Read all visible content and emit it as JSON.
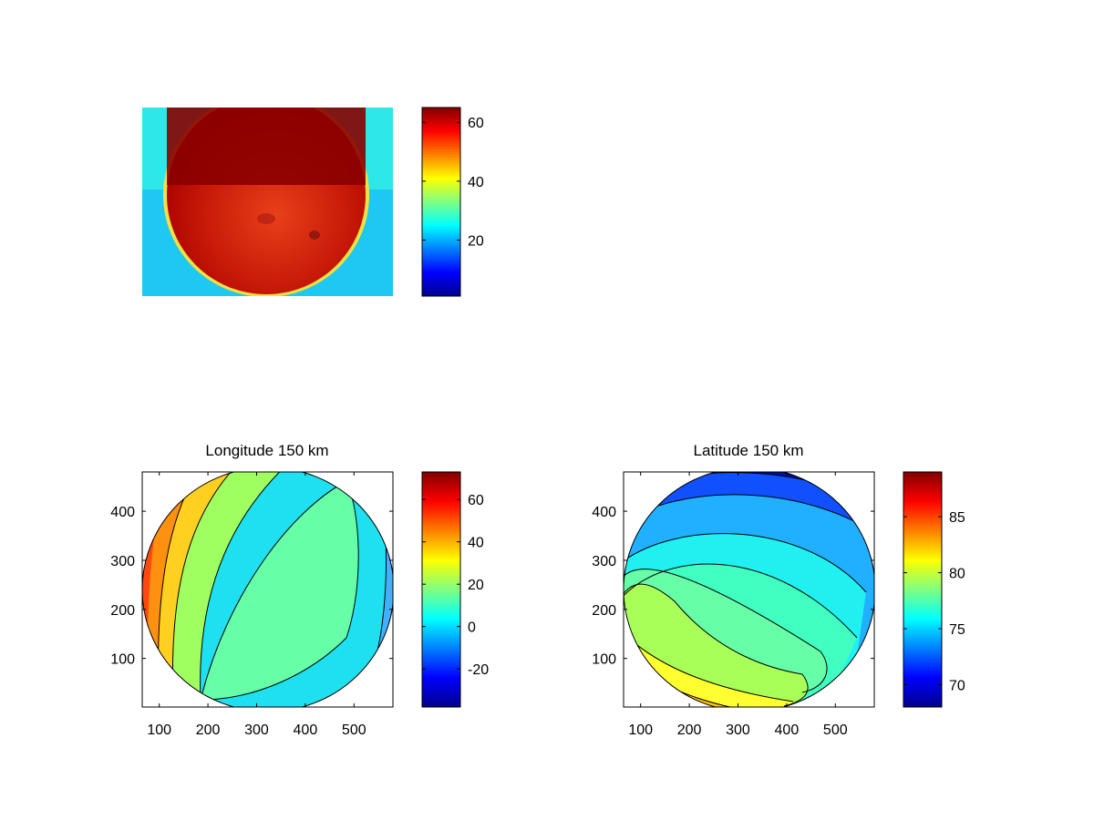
{
  "chart_data": [
    {
      "type": "heatmap",
      "title": "",
      "description_shape": "disk image",
      "colormap": "jet",
      "colorbar": {
        "range": [
          1,
          65
        ],
        "ticks": [
          20,
          40,
          60
        ],
        "tick_labels": [
          "20",
          "40",
          "60"
        ]
      },
      "axes_visible": false
    },
    {
      "type": "contour",
      "title": "Longitude 150 km",
      "colormap": "jet",
      "xlim": [
        65,
        580
      ],
      "ylim": [
        1,
        480
      ],
      "xticks": [
        100,
        200,
        300,
        400,
        500
      ],
      "xtick_labels": [
        "100",
        "200",
        "300",
        "400",
        "500"
      ],
      "yticks": [
        100,
        200,
        300,
        400
      ],
      "ytick_labels": [
        "100",
        "200",
        "300",
        "400"
      ],
      "colorbar": {
        "range": [
          -38,
          73
        ],
        "ticks": [
          -20,
          0,
          20,
          40,
          60
        ],
        "tick_labels": [
          "-20",
          "0",
          "20",
          "40",
          "60"
        ]
      },
      "contour_levels": [
        -30,
        -20,
        -10,
        0,
        10,
        20,
        30,
        40,
        50,
        60,
        70
      ]
    },
    {
      "type": "contour",
      "title": "Latitude 150 km",
      "colormap": "jet",
      "xlim": [
        65,
        580
      ],
      "ylim": [
        1,
        480
      ],
      "xticks": [
        100,
        200,
        300,
        400,
        500
      ],
      "xtick_labels": [
        "100",
        "200",
        "300",
        "400",
        "500"
      ],
      "yticks": [
        100,
        200,
        300,
        400
      ],
      "ytick_labels": [
        "100",
        "200",
        "300",
        "400"
      ],
      "colorbar": {
        "range": [
          68,
          89
        ],
        "ticks": [
          70,
          75,
          80,
          85
        ],
        "tick_labels": [
          "70",
          "75",
          "80",
          "85"
        ]
      },
      "contour_levels": [
        70,
        72,
        74,
        76,
        78,
        80,
        82,
        84,
        86,
        88
      ]
    }
  ]
}
